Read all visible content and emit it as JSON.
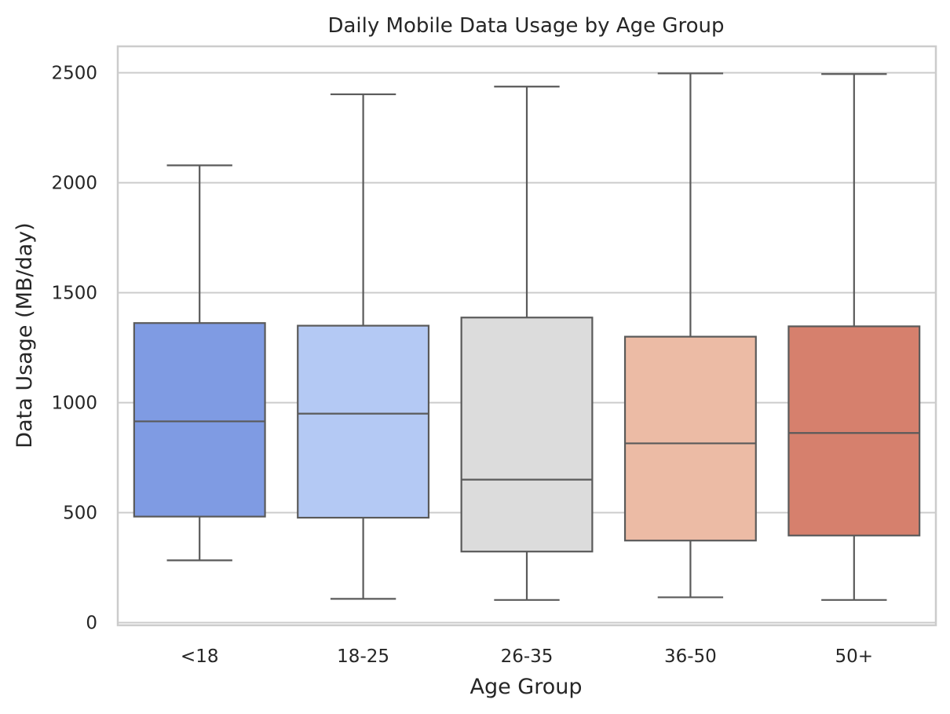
{
  "chart_data": {
    "type": "box",
    "title": "Daily Mobile Data Usage by Age Group",
    "xlabel": "Age Group",
    "ylabel": "Data Usage (MB/day)",
    "ylim": [
      -12,
      2620
    ],
    "yticks": [
      0,
      500,
      1000,
      1500,
      2000,
      2500
    ],
    "grid": "horizontal",
    "categories": [
      "<18",
      "18-25",
      "26-35",
      "36-50",
      "50+"
    ],
    "boxes": [
      {
        "category": "<18",
        "whislo": 283,
        "q1": 482,
        "median": 915,
        "q3": 1362,
        "whishi": 2079,
        "color": "#7f9be3"
      },
      {
        "category": "18-25",
        "whislo": 108,
        "q1": 477,
        "median": 950,
        "q3": 1350,
        "whishi": 2402,
        "color": "#b4c9f4"
      },
      {
        "category": "26-35",
        "whislo": 103,
        "q1": 323,
        "median": 650,
        "q3": 1387,
        "whishi": 2437,
        "color": "#dcdcdc"
      },
      {
        "category": "36-50",
        "whislo": 115,
        "q1": 373,
        "median": 815,
        "q3": 1300,
        "whishi": 2497,
        "color": "#ecbba5"
      },
      {
        "category": "50+",
        "whislo": 103,
        "q1": 396,
        "median": 862,
        "q3": 1347,
        "whishi": 2494,
        "color": "#d6806d"
      }
    ]
  }
}
